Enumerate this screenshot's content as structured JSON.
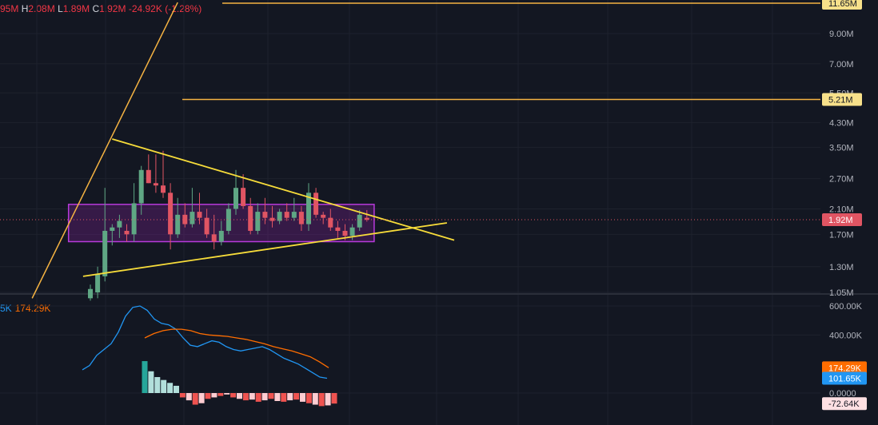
{
  "legend": {
    "open_fragment": "95M",
    "h_key": "H",
    "h_val": "2.08M",
    "l_key": "L",
    "l_val": "1.89M",
    "c_key": "C",
    "c_val": "1.92M",
    "change": "-24.92K (-1.28%)"
  },
  "indicator": {
    "fast_fragment": "5K",
    "slow_value": "174.29K"
  },
  "colors": {
    "bg": "#131722",
    "up": "#5fa784",
    "down": "#e05563",
    "trend": "#f7dc3a",
    "hline": "#f5b342",
    "box_fill": "rgba(136,32,160,0.30)",
    "box_stroke": "#b73adb",
    "fast": "#2196f3",
    "slow": "#ff6d00",
    "hist_up_strong": "#26a69a",
    "hist_up_weak": "#b2dfdb",
    "hist_dn_strong": "#ef5350",
    "hist_dn_weak": "#ffcdd2"
  },
  "chart_data": {
    "type": "candlestick",
    "price_axis": {
      "scale": "log",
      "ticks": [
        "9.00M",
        "7.00M",
        "5.50M",
        "4.30M",
        "3.50M",
        "2.70M",
        "2.10M",
        "1.70M",
        "1.30M",
        "1.05M"
      ],
      "tick_values": [
        9.0,
        7.0,
        5.5,
        4.3,
        3.5,
        2.7,
        2.1,
        1.7,
        1.3,
        1.05
      ]
    },
    "price_tags": [
      {
        "label": "11.65M",
        "value": 11.65,
        "kind": "hline"
      },
      {
        "label": "5.21M",
        "value": 5.21,
        "kind": "hline"
      },
      {
        "label": "1.92M",
        "value": 1.92,
        "kind": "last"
      }
    ],
    "candles": [
      {
        "o": 1.0,
        "h": 1.12,
        "l": 0.98,
        "c": 1.08
      },
      {
        "o": 1.05,
        "h": 1.3,
        "l": 1.0,
        "c": 1.22
      },
      {
        "o": 1.2,
        "h": 2.5,
        "l": 1.15,
        "c": 1.75
      },
      {
        "o": 1.75,
        "h": 1.85,
        "l": 1.55,
        "c": 1.8
      },
      {
        "o": 1.8,
        "h": 2.0,
        "l": 1.65,
        "c": 1.9
      },
      {
        "o": 1.75,
        "h": 1.85,
        "l": 1.6,
        "c": 1.7
      },
      {
        "o": 1.7,
        "h": 2.6,
        "l": 1.6,
        "c": 2.2
      },
      {
        "o": 2.2,
        "h": 3.0,
        "l": 2.0,
        "c": 2.9
      },
      {
        "o": 2.9,
        "h": 3.3,
        "l": 2.6,
        "c": 2.6
      },
      {
        "o": 2.6,
        "h": 3.3,
        "l": 2.4,
        "c": 2.55
      },
      {
        "o": 2.55,
        "h": 3.4,
        "l": 2.3,
        "c": 2.4
      },
      {
        "o": 2.4,
        "h": 2.6,
        "l": 1.5,
        "c": 1.7
      },
      {
        "o": 1.7,
        "h": 2.3,
        "l": 1.65,
        "c": 2.0
      },
      {
        "o": 2.0,
        "h": 2.2,
        "l": 1.8,
        "c": 1.85
      },
      {
        "o": 1.85,
        "h": 2.5,
        "l": 1.8,
        "c": 2.05
      },
      {
        "o": 2.05,
        "h": 2.4,
        "l": 1.85,
        "c": 1.95
      },
      {
        "o": 1.95,
        "h": 2.1,
        "l": 1.65,
        "c": 1.7
      },
      {
        "o": 1.7,
        "h": 2.0,
        "l": 1.5,
        "c": 1.6
      },
      {
        "o": 1.6,
        "h": 1.9,
        "l": 1.55,
        "c": 1.75
      },
      {
        "o": 1.75,
        "h": 2.2,
        "l": 1.7,
        "c": 2.1
      },
      {
        "o": 2.1,
        "h": 2.9,
        "l": 2.0,
        "c": 2.5
      },
      {
        "o": 2.5,
        "h": 2.8,
        "l": 2.1,
        "c": 2.15
      },
      {
        "o": 2.15,
        "h": 2.3,
        "l": 1.7,
        "c": 1.75
      },
      {
        "o": 1.75,
        "h": 2.2,
        "l": 1.7,
        "c": 2.05
      },
      {
        "o": 2.05,
        "h": 2.3,
        "l": 1.85,
        "c": 1.95
      },
      {
        "o": 1.95,
        "h": 2.15,
        "l": 1.8,
        "c": 1.9
      },
      {
        "o": 1.9,
        "h": 2.1,
        "l": 1.85,
        "c": 2.05
      },
      {
        "o": 2.05,
        "h": 2.2,
        "l": 1.9,
        "c": 1.95
      },
      {
        "o": 1.95,
        "h": 2.3,
        "l": 1.9,
        "c": 2.05
      },
      {
        "o": 2.05,
        "h": 2.15,
        "l": 1.75,
        "c": 1.85
      },
      {
        "o": 1.85,
        "h": 2.6,
        "l": 1.75,
        "c": 2.4
      },
      {
        "o": 2.4,
        "h": 2.5,
        "l": 1.95,
        "c": 2.0
      },
      {
        "o": 2.0,
        "h": 2.05,
        "l": 1.85,
        "c": 1.95
      },
      {
        "o": 1.95,
        "h": 2.1,
        "l": 1.75,
        "c": 1.8
      },
      {
        "o": 1.8,
        "h": 1.9,
        "l": 1.65,
        "c": 1.75
      },
      {
        "o": 1.75,
        "h": 1.85,
        "l": 1.62,
        "c": 1.68
      },
      {
        "o": 1.68,
        "h": 1.85,
        "l": 1.62,
        "c": 1.8
      },
      {
        "o": 1.8,
        "h": 2.08,
        "l": 1.75,
        "c": 2.0
      },
      {
        "o": 1.95,
        "h": 2.08,
        "l": 1.89,
        "c": 1.92
      }
    ],
    "indicator_axis": {
      "ticks": [
        "600.00K",
        "400.00K",
        "0.0000"
      ],
      "tick_values": [
        600000,
        400000,
        0
      ]
    },
    "indicator_tags": [
      {
        "label": "174.29K",
        "value": 174290,
        "series": "slow"
      },
      {
        "label": "101.65K",
        "value": 101650,
        "series": "fast"
      },
      {
        "label": "-72.64K",
        "value": -72640,
        "series": "hist"
      }
    ],
    "fast_line": [
      160000,
      190000,
      260000,
      300000,
      340000,
      420000,
      530000,
      590000,
      600000,
      570000,
      510000,
      480000,
      470000,
      440000,
      380000,
      330000,
      320000,
      340000,
      360000,
      350000,
      320000,
      300000,
      290000,
      300000,
      310000,
      320000,
      300000,
      270000,
      240000,
      220000,
      200000,
      170000,
      140000,
      110000,
      101650
    ],
    "slow_line": [
      380000,
      410000,
      430000,
      440000,
      440000,
      430000,
      410000,
      400000,
      395000,
      390000,
      380000,
      370000,
      355000,
      340000,
      320000,
      305000,
      290000,
      270000,
      250000,
      215000,
      174290
    ],
    "histogram": [
      220000,
      150000,
      110000,
      90000,
      70000,
      50000,
      -30000,
      -50000,
      -80000,
      -70000,
      -40000,
      -30000,
      -20000,
      -10000,
      -30000,
      -40000,
      -50000,
      -45000,
      -60000,
      -50000,
      -40000,
      -55000,
      -60000,
      -50000,
      -45000,
      -60000,
      -70000,
      -80000,
      -90000,
      -85000,
      -72640
    ],
    "drawings": {
      "trendline_upper": [
        {
          "bar": 3,
          "price": 3.75
        },
        {
          "bar": 50,
          "price": 1.62
        }
      ],
      "trendline_lower": [
        {
          "bar": -1,
          "price": 1.2
        },
        {
          "bar": 49,
          "price": 1.87
        }
      ],
      "steep_line": [
        {
          "bar": -8,
          "price": 1.0
        },
        {
          "bar": 12,
          "price": 11.65
        }
      ],
      "box": {
        "from_bar": -3,
        "to_bar": 39,
        "top": 2.18,
        "bottom": 1.6
      }
    }
  }
}
